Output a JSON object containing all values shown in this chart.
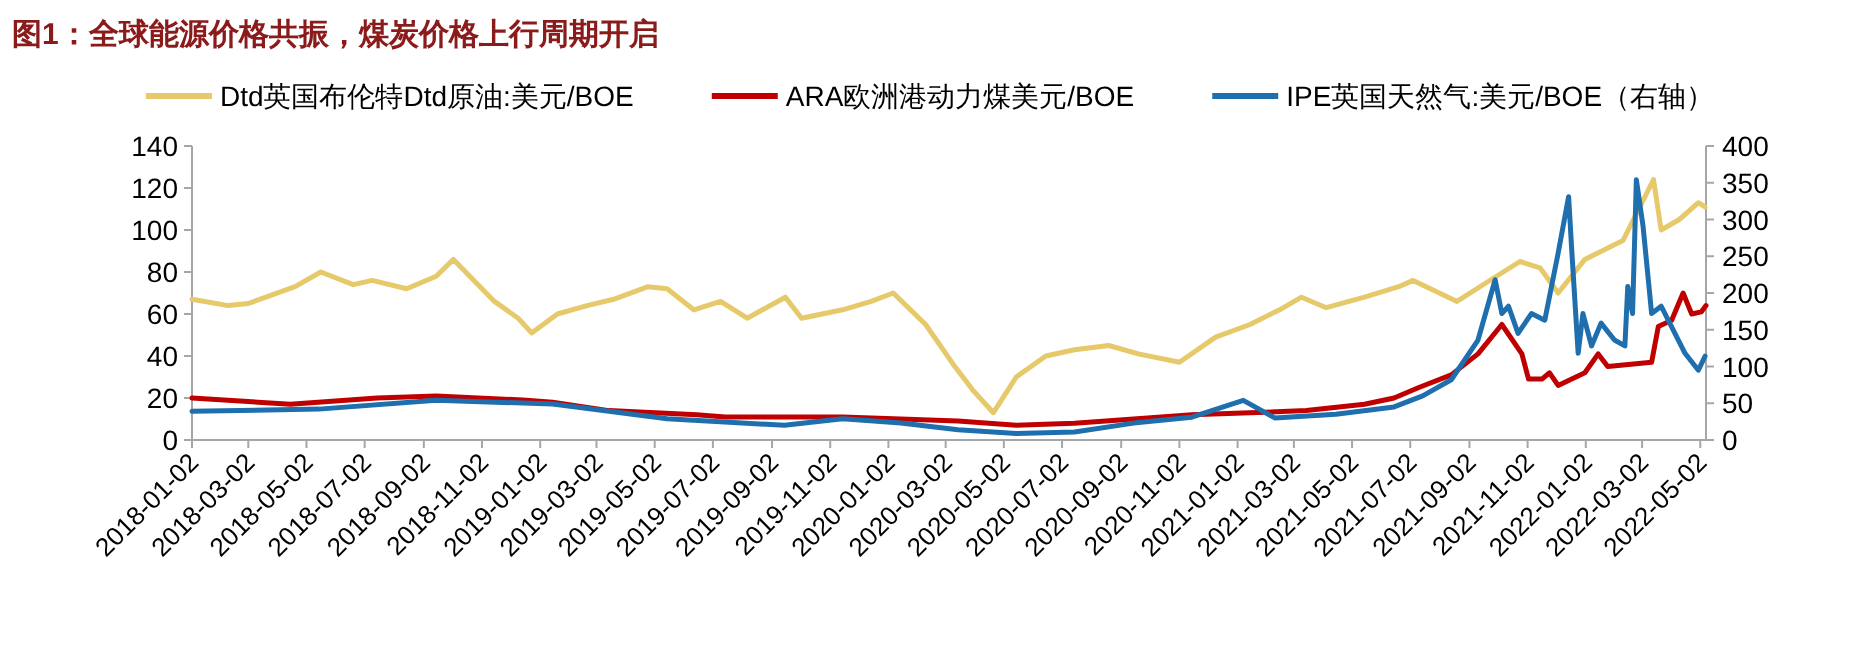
{
  "chart_data": {
    "type": "line",
    "title": "图1：全球能源价格共振，煤炭价格上行周期开启",
    "xlim": [
      "2018-01-02",
      "2022-05-08"
    ],
    "xticks": [
      "2018-01-02",
      "2018-03-02",
      "2018-05-02",
      "2018-07-02",
      "2018-09-02",
      "2018-11-02",
      "2019-01-02",
      "2019-03-02",
      "2019-05-02",
      "2019-07-02",
      "2019-09-02",
      "2019-11-02",
      "2020-01-02",
      "2020-03-02",
      "2020-05-02",
      "2020-07-02",
      "2020-09-02",
      "2020-11-02",
      "2021-01-02",
      "2021-03-02",
      "2021-05-02",
      "2021-07-02",
      "2021-09-02",
      "2021-11-02",
      "2022-01-02",
      "2022-03-02",
      "2022-05-02"
    ],
    "ylim": [
      0,
      140
    ],
    "yticks": [
      0,
      20,
      40,
      60,
      80,
      100,
      120,
      140
    ],
    "y2lim": [
      0,
      400
    ],
    "y2ticks": [
      0,
      50,
      100,
      150,
      200,
      250,
      300,
      350,
      400
    ],
    "legend": "top",
    "grid": false,
    "line_style": "solid",
    "marker": "none",
    "series": [
      {
        "name": "Dtd英国布伦特Dtd原油:美元/BOE",
        "color": "#e6c96a",
        "x": [
          "2018-01-02",
          "2018-02-09",
          "2018-03-02",
          "2018-04-20",
          "2018-05-17",
          "2018-06-20",
          "2018-07-10",
          "2018-08-15",
          "2018-09-15",
          "2018-10-03",
          "2018-11-15",
          "2018-12-10",
          "2018-12-24",
          "2019-01-20",
          "2019-02-20",
          "2019-03-20",
          "2019-04-25",
          "2019-05-15",
          "2019-06-12",
          "2019-07-10",
          "2019-08-07",
          "2019-09-16",
          "2019-10-03",
          "2019-11-15",
          "2019-12-15",
          "2020-01-07",
          "2020-02-10",
          "2020-03-10",
          "2020-03-30",
          "2020-04-21",
          "2020-05-15",
          "2020-06-15",
          "2020-07-15",
          "2020-08-20",
          "2020-09-20",
          "2020-11-02",
          "2020-12-10",
          "2021-01-15",
          "2021-02-15",
          "2021-03-10",
          "2021-04-05",
          "2021-05-15",
          "2021-06-20",
          "2021-07-05",
          "2021-08-20",
          "2021-09-20",
          "2021-10-25",
          "2021-11-15",
          "2021-12-04",
          "2022-01-01",
          "2022-02-10",
          "2022-03-14",
          "2022-03-22",
          "2022-04-10",
          "2022-04-30",
          "2022-05-07"
        ],
        "values": [
          67,
          64,
          65,
          73,
          80,
          74,
          76,
          72,
          78,
          86,
          66,
          58,
          51,
          60,
          64,
          67,
          73,
          72,
          62,
          66,
          58,
          68,
          58,
          62,
          66,
          70,
          55,
          36,
          24,
          13,
          30,
          40,
          43,
          45,
          41,
          37,
          49,
          55,
          62,
          68,
          63,
          68,
          73,
          76,
          66,
          75,
          85,
          82,
          70,
          86,
          95,
          124,
          100,
          105,
          113,
          111
        ]
      },
      {
        "name": "ARA欧洲港动力煤美元/BOE",
        "color": "#c00000",
        "x": [
          "2018-01-02",
          "2018-04-15",
          "2018-07-15",
          "2018-09-15",
          "2018-12-15",
          "2019-01-15",
          "2019-03-15",
          "2019-06-15",
          "2019-07-15",
          "2019-09-15",
          "2019-11-15",
          "2020-01-15",
          "2020-03-15",
          "2020-05-15",
          "2020-07-15",
          "2020-09-15",
          "2020-11-15",
          "2021-01-15",
          "2021-03-15",
          "2021-05-15",
          "2021-06-15",
          "2021-07-11",
          "2021-08-14",
          "2021-09-11",
          "2021-10-06",
          "2021-10-27",
          "2021-11-03",
          "2021-11-17",
          "2021-11-25",
          "2021-12-04",
          "2022-01-01",
          "2022-01-15",
          "2022-01-25",
          "2022-03-12",
          "2022-03-19",
          "2022-04-02",
          "2022-04-14",
          "2022-04-23",
          "2022-05-03",
          "2022-05-08"
        ],
        "values": [
          20,
          17,
          20,
          21,
          19,
          18,
          14,
          12,
          11,
          11,
          11,
          10,
          9,
          7,
          8,
          10,
          12,
          13,
          14,
          17,
          20,
          25,
          31,
          41,
          55,
          41,
          29,
          29,
          32,
          26,
          32,
          41,
          35,
          37,
          54,
          57,
          70,
          60,
          61,
          64
        ]
      },
      {
        "name": "IPE英国天然气:美元/BOE（右轴）",
        "color": "#1f6fae",
        "axis": "y2",
        "x": [
          "2018-01-02",
          "2018-05-15",
          "2018-09-15",
          "2019-01-15",
          "2019-05-15",
          "2019-09-15",
          "2019-11-15",
          "2020-01-15",
          "2020-03-15",
          "2020-05-15",
          "2020-07-15",
          "2020-09-15",
          "2020-11-15",
          "2021-01-08",
          "2021-02-10",
          "2021-04-15",
          "2021-06-15",
          "2021-07-15",
          "2021-08-14",
          "2021-09-11",
          "2021-09-29",
          "2021-10-06",
          "2021-10-13",
          "2021-10-23",
          "2021-11-06",
          "2021-11-20",
          "2021-12-04",
          "2021-12-15",
          "2021-12-18",
          "2021-12-25",
          "2021-12-30",
          "2022-01-08",
          "2022-01-18",
          "2022-02-01",
          "2022-02-12",
          "2022-02-15",
          "2022-02-20",
          "2022-02-24",
          "2022-03-03",
          "2022-03-12",
          "2022-03-22",
          "2022-04-16",
          "2022-04-30",
          "2022-05-07"
        ],
        "values": [
          39,
          42,
          54,
          49,
          29,
          20,
          29,
          23,
          14,
          9,
          11,
          23,
          31,
          54,
          30,
          35,
          45,
          60,
          82,
          136,
          218,
          172,
          182,
          145,
          172,
          163,
          254,
          331,
          264,
          118,
          172,
          128,
          159,
          136,
          128,
          209,
          172,
          354,
          291,
          172,
          182,
          118,
          95,
          114
        ]
      }
    ]
  }
}
